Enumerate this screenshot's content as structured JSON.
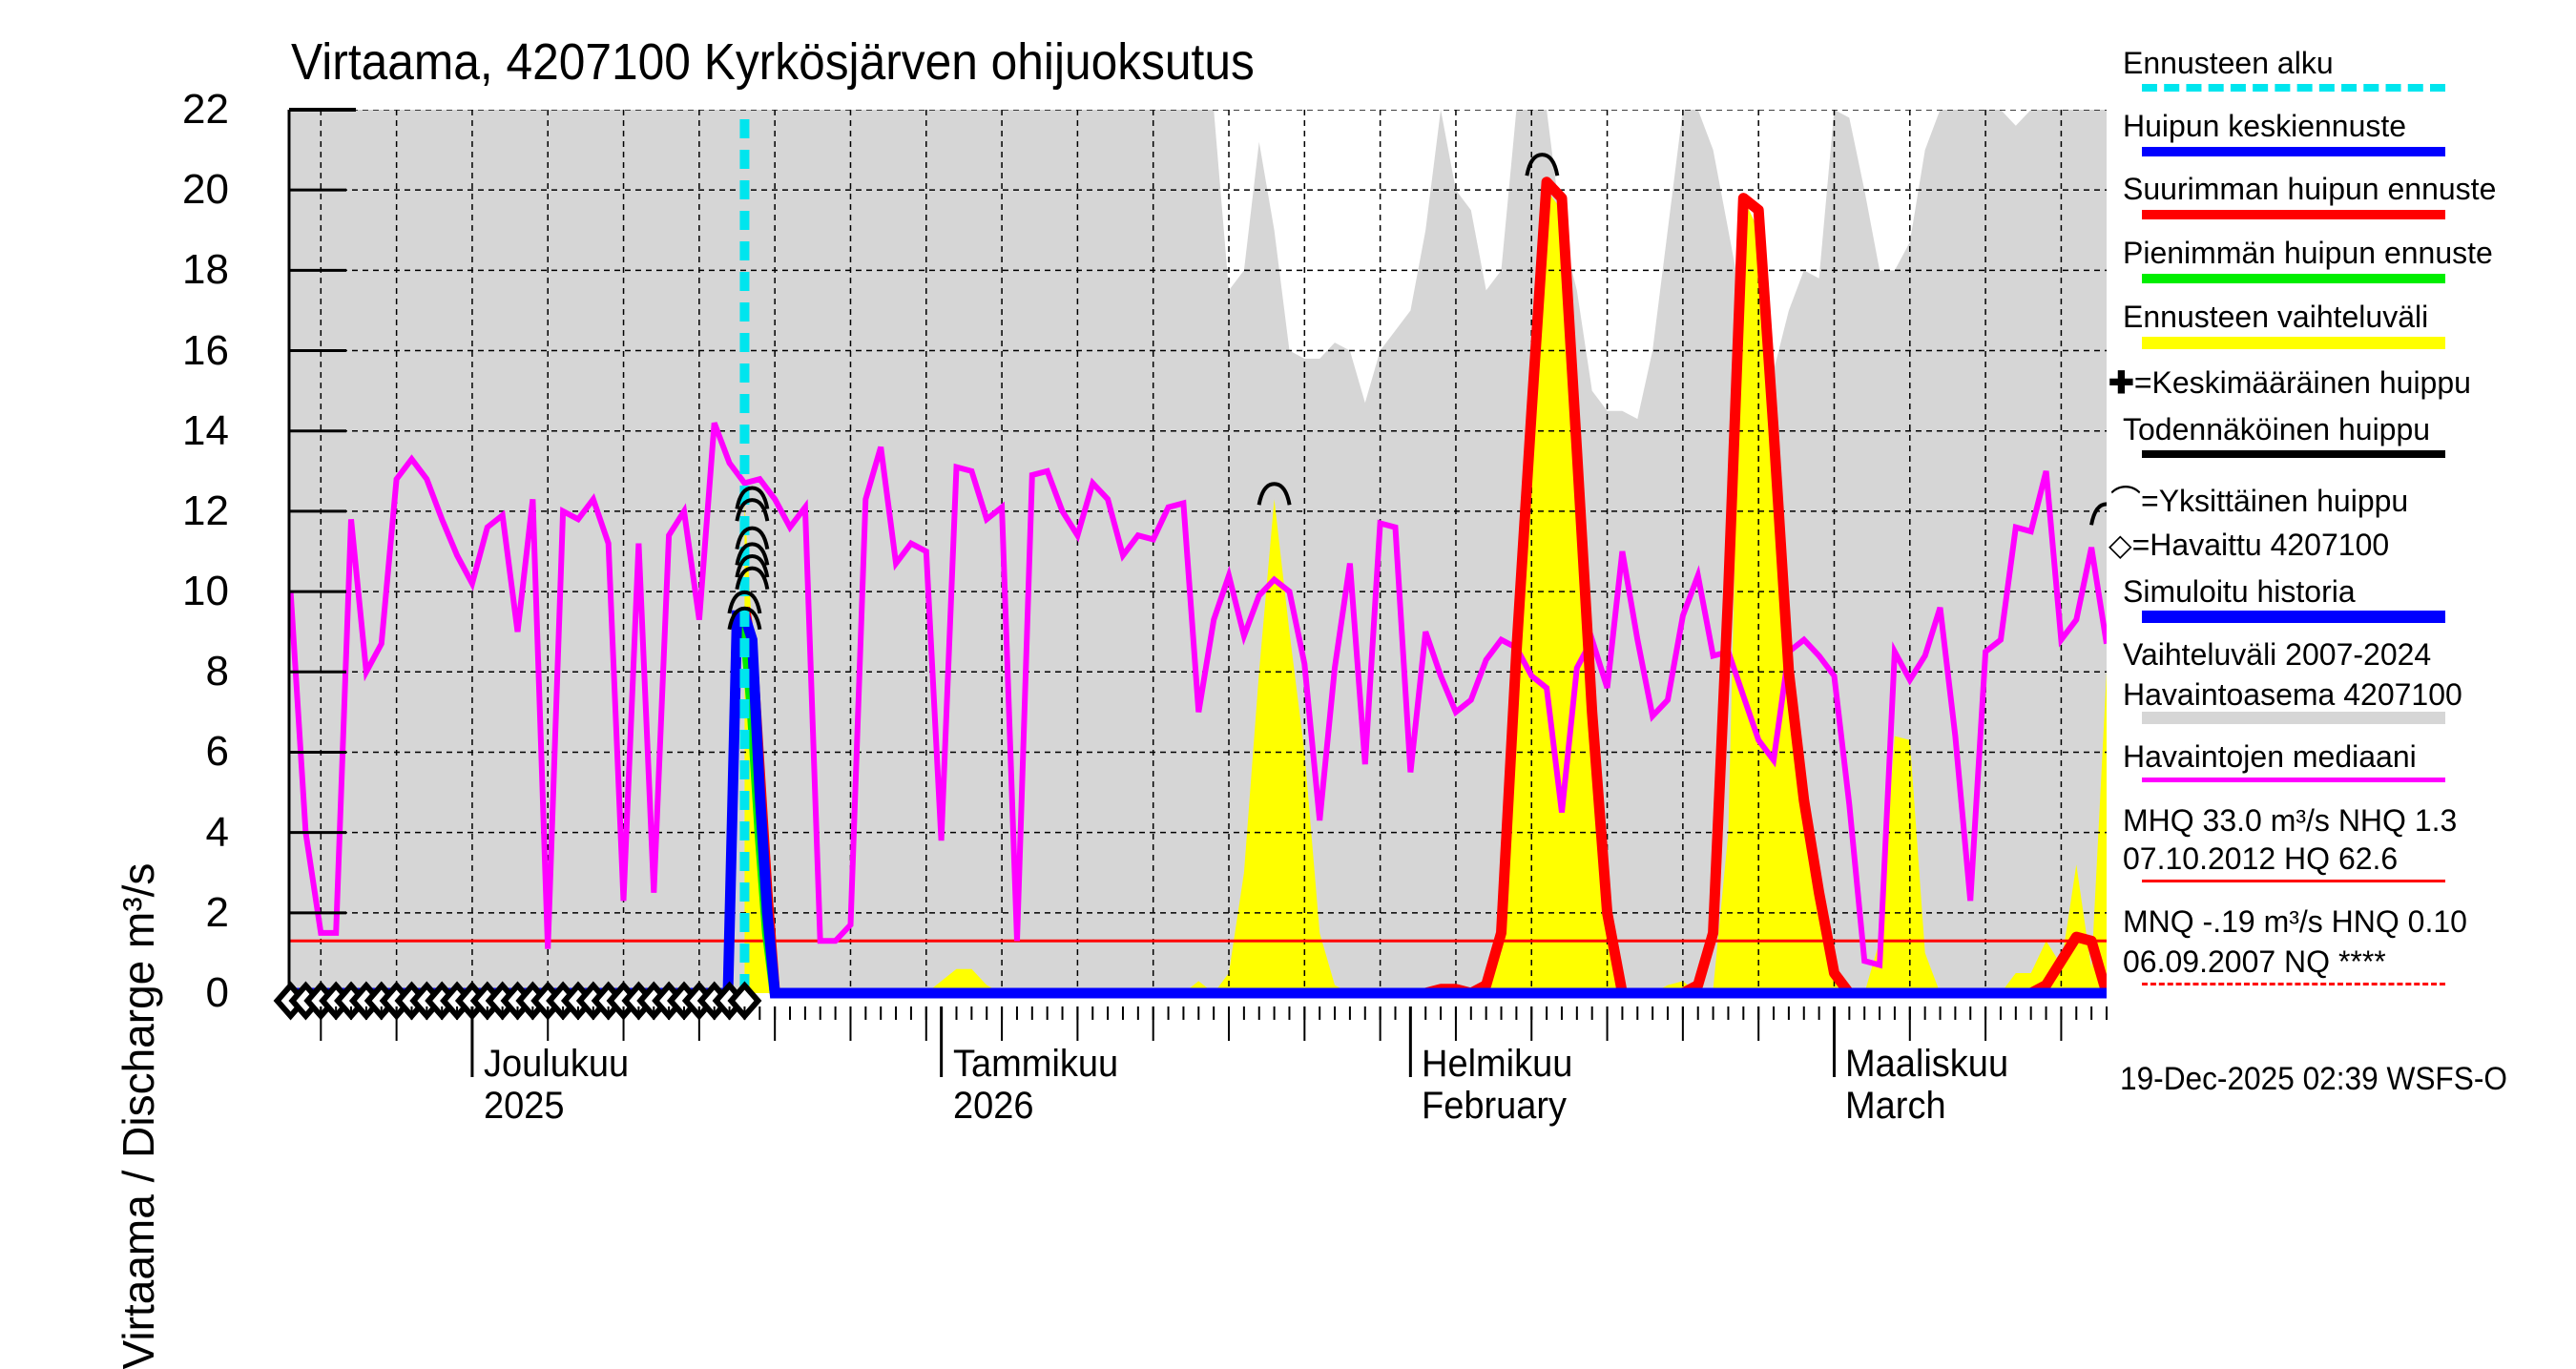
{
  "title": "Virtaama, 4207100 Kyrkösjärven ohijuoksutus",
  "y_axis_label": "Virtaama / Discharge    m³/s",
  "x_axis": {
    "months": [
      {
        "label1": "Joulukuu",
        "label2": "2025",
        "day": 0
      },
      {
        "label1": "Tammikuu",
        "label2": "2026",
        "day": 31
      },
      {
        "label1": "Helmikuu",
        "label2": "February",
        "day": 62
      },
      {
        "label1": "Maaliskuu",
        "label2": "March",
        "day": 90
      }
    ]
  },
  "legend": {
    "forecast_start": "Ennusteen alku",
    "mean_peak_forecast": "Huipun keskiennuste",
    "max_peak_forecast": "Suurimman huipun ennuste",
    "min_peak_forecast": "Pienimmän huipun ennuste",
    "forecast_range": "Ennusteen vaihteluväli",
    "mean_peak": "=Keskimääräinen huippu",
    "probable_peak": "Todennäköinen huippu",
    "single_peak": "=Yksittäinen huippu",
    "observed": "=Havaittu 4207100",
    "simulated_history": "Simuloitu historia",
    "range_line1": "Vaihteluväli 2007-2024",
    "range_line2": "Havaintoasema 4207100",
    "median": "Havaintojen mediaani",
    "mhq_line1": "MHQ 33.0 m³/s NHQ  1.3",
    "mhq_line2": "07.10.2012 HQ 62.6",
    "mnq_line1": "MNQ -.19 m³/s HNQ 0.10",
    "mnq_line2": "06.09.2007 NQ ****"
  },
  "footer": "19-Dec-2025 02:39 WSFS-O",
  "colors": {
    "forecast_start": "#00e5ee",
    "mean_forecast": "#0000ff",
    "max_forecast": "#ff0000",
    "min_forecast": "#00ee00",
    "forecast_range": "#ffff00",
    "probable_peak": "#000000",
    "simulated": "#0000ff",
    "hist_range": "#d6d6d6",
    "median": "#ff00ff",
    "nhq": "#ff0000",
    "grid": "#000000"
  },
  "chart_data": {
    "type": "line",
    "title": "Virtaama, 4207100 Kyrkösjärven ohijuoksutus",
    "xlabel": "",
    "ylabel": "Virtaama / Discharge m³/s",
    "ylim": [
      0,
      22
    ],
    "yticks": [
      0,
      2,
      4,
      6,
      8,
      10,
      12,
      14,
      16,
      18,
      20,
      22
    ],
    "x_unit": "days since 2025-12-01",
    "xlim": [
      -12.1,
      108
    ],
    "forecast_start_day": 18,
    "nhq_level": 1.3,
    "grid": true,
    "series": [
      {
        "name": "Havaintojen mediaani",
        "days": [
          -12,
          -11,
          -10,
          -9,
          -8,
          -7,
          -6,
          -5,
          -4,
          -3,
          -2,
          -1,
          0,
          1,
          2,
          3,
          4,
          5,
          6,
          7,
          8,
          9,
          10,
          11,
          12,
          13,
          14,
          15,
          16,
          17,
          18,
          19,
          20,
          21,
          22,
          23,
          24,
          25,
          26,
          27,
          28,
          29,
          30,
          31,
          32,
          33,
          34,
          35,
          36,
          37,
          38,
          39,
          40,
          41,
          42,
          43,
          44,
          45,
          46,
          47,
          48,
          49,
          50,
          51,
          52,
          53,
          54,
          55,
          56,
          57,
          58,
          59,
          60,
          61,
          62,
          63,
          64,
          65,
          66,
          67,
          68,
          69,
          70,
          71,
          72,
          73,
          74,
          75,
          76,
          77,
          78,
          79,
          80,
          81,
          82,
          83,
          84,
          85,
          86,
          87,
          88,
          89,
          90,
          91,
          92,
          93,
          94,
          95,
          96,
          97,
          98,
          99,
          100,
          101,
          102,
          103,
          104,
          105,
          106,
          107,
          108
        ],
        "values": [
          10,
          4,
          1.5,
          1.5,
          11.8,
          8,
          8.7,
          12.8,
          13.3,
          12.8,
          11.8,
          10.9,
          10.2,
          11.6,
          11.9,
          9,
          12.3,
          1.1,
          12,
          11.8,
          12.3,
          11.2,
          2.3,
          11.2,
          2.5,
          11.4,
          12,
          9.3,
          14.2,
          13.2,
          12.7,
          12.8,
          12.3,
          11.6,
          12.1,
          1.3,
          1.3,
          1.7,
          12.3,
          13.6,
          10.7,
          11.2,
          11,
          3.8,
          13.1,
          13,
          11.8,
          12.1,
          1.3,
          12.9,
          13,
          12,
          11.4,
          12.7,
          12.3,
          10.9,
          11.4,
          11.3,
          12.1,
          12.2,
          7,
          9.3,
          10.4,
          8.9,
          9.9,
          10.3,
          10,
          8.2,
          4.3,
          8.1,
          10.7,
          5.7,
          11.7,
          11.6,
          5.5,
          9,
          7.9,
          7,
          7.3,
          8.3,
          8.8,
          8.6,
          7.9,
          7.6,
          4.5,
          8.1,
          8.8,
          7.6,
          11,
          8.8,
          6.9,
          7.3,
          9.4,
          10.4,
          8.4,
          8.5,
          7.4,
          6.3,
          5.8,
          8.5,
          8.8,
          8.4,
          7.9,
          4.7,
          0.8,
          0.7,
          8.5,
          7.8,
          8.4,
          9.6,
          6.4,
          2.3,
          8.5,
          8.8,
          11.6,
          11.5,
          13,
          8.8,
          9.3,
          11.1,
          8.7
        ]
      },
      {
        "name": "Huipun keskiennuste / Simuloitu historia",
        "days": [
          -12,
          16.9,
          17.5,
          18,
          18.5,
          19,
          19.5,
          20,
          108
        ],
        "values": [
          0,
          0,
          9.4,
          9.4,
          8.8,
          5,
          2,
          0,
          0
        ]
      },
      {
        "name": "Pienimmän huipun ennuste",
        "days": [
          18,
          18.5,
          19,
          19.5,
          20
        ],
        "values": [
          9.2,
          7,
          4,
          1.5,
          0
        ]
      },
      {
        "name": "Suurimman huipun ennuste",
        "days": [
          18,
          18.5,
          19,
          19.5,
          20,
          40,
          63,
          64,
          65,
          66,
          67,
          68,
          69,
          70,
          71,
          72,
          73,
          74,
          75,
          76,
          77,
          78,
          79,
          80,
          81,
          82,
          83,
          84,
          85,
          86,
          87,
          88,
          89,
          90,
          91,
          100,
          103,
          104,
          105,
          106,
          107,
          108
        ],
        "values": [
          9.6,
          8.5,
          5.5,
          2.5,
          0,
          0,
          0,
          0.1,
          0.1,
          0,
          0.2,
          1.5,
          8.5,
          14.5,
          20.2,
          19.8,
          13.5,
          7,
          2,
          0,
          0,
          0,
          0,
          0,
          0.2,
          1.5,
          10,
          19.8,
          19.5,
          14,
          8,
          4.8,
          2.5,
          0.5,
          0,
          0,
          0,
          0.2,
          0.8,
          1.4,
          1.3,
          0
        ]
      },
      {
        "name": "Ennusteen vaihteluväli (upper)",
        "days": [
          18,
          18.5,
          19,
          19.5,
          20,
          24,
          30,
          32,
          33,
          34,
          35,
          36,
          37,
          38,
          40,
          45,
          47,
          48,
          49,
          50,
          51,
          52,
          53,
          54,
          55,
          56,
          57,
          58,
          59,
          60,
          61,
          62,
          63,
          64,
          65,
          66,
          67,
          68,
          69,
          70,
          71,
          72,
          73,
          74,
          75,
          76,
          77,
          78,
          79,
          80,
          81,
          82,
          83,
          84,
          85,
          86,
          87,
          88,
          89,
          90,
          91,
          92,
          93,
          94,
          95,
          96,
          97,
          98,
          99,
          100,
          101,
          102,
          103,
          104,
          105,
          106,
          107,
          108
        ],
        "values": [
          12.2,
          9,
          6,
          3,
          0,
          0,
          0,
          0.6,
          0.6,
          0.2,
          0,
          0,
          0,
          0,
          0,
          0,
          0,
          0.3,
          0,
          0.5,
          3,
          8,
          12.3,
          9,
          6,
          1.5,
          0.2,
          0,
          0,
          0,
          0,
          0,
          0,
          0,
          0,
          0,
          0.3,
          1,
          8,
          14,
          20,
          19.5,
          14,
          6,
          1.5,
          0.2,
          0,
          0,
          0.2,
          0.3,
          0,
          0.1,
          4,
          19.8,
          19,
          14,
          7,
          4.8,
          3,
          0.8,
          0,
          0,
          1.3,
          6.4,
          6.3,
          1,
          0,
          0,
          0,
          0,
          0,
          0.5,
          0.5,
          1.3,
          0.7,
          3.2,
          0.6,
          8,
          11.7
        ]
      },
      {
        "name": "Vaihteluväli 2007-2024 (upper envelope)",
        "days": [
          -12,
          45,
          46,
          47,
          48,
          49,
          50,
          51,
          52,
          53,
          54,
          55,
          56,
          57,
          58,
          59,
          60,
          61,
          62,
          63,
          64,
          65,
          66,
          67,
          68,
          69,
          70,
          71,
          72,
          73,
          74,
          75,
          76,
          77,
          78,
          79,
          80,
          81,
          82,
          83,
          84,
          85,
          86,
          87,
          88,
          89,
          90,
          91,
          92,
          93,
          94,
          95,
          96,
          97,
          98,
          99,
          100,
          101,
          102,
          103,
          104,
          105,
          106,
          107,
          108
        ],
        "values": [
          22,
          22,
          22,
          22,
          22,
          22,
          17.5,
          18,
          21.2,
          19,
          16,
          15.8,
          15.8,
          16.2,
          16,
          14.7,
          16,
          16.5,
          17,
          19,
          22,
          20,
          19.5,
          17.5,
          18,
          22,
          22,
          22,
          19,
          17.5,
          15,
          14.5,
          14.5,
          14.3,
          16,
          19,
          22,
          22,
          21,
          19,
          17,
          16.5,
          15.5,
          17,
          18,
          17.8,
          22,
          21.8,
          20,
          18,
          18,
          18.7,
          21,
          22,
          22,
          22,
          22,
          22,
          21.6,
          22,
          22,
          22,
          22,
          22,
          22
        ]
      },
      {
        "name": "Havaittu 4207100",
        "days": [
          -12,
          -11,
          -10,
          -9,
          -8,
          -7,
          -6,
          -5,
          -4,
          -3,
          -2,
          -1,
          0,
          1,
          2,
          3,
          4,
          5,
          6,
          7,
          8,
          9,
          10,
          11,
          12,
          13,
          14,
          15,
          16,
          17,
          18
        ],
        "values": [
          0,
          0,
          0,
          0,
          0,
          0,
          0,
          0,
          0,
          0,
          0,
          0,
          0,
          0,
          0,
          0,
          0,
          0,
          0,
          0,
          0,
          0,
          0,
          0,
          0,
          0,
          0,
          0,
          0,
          0,
          0
        ]
      }
    ],
    "single_peaks": [
      {
        "day": 18.5,
        "value": 12.2
      },
      {
        "day": 18.5,
        "value": 11.9
      },
      {
        "day": 18.5,
        "value": 11.2
      },
      {
        "day": 18.5,
        "value": 10.8
      },
      {
        "day": 18.5,
        "value": 10.5
      },
      {
        "day": 18.5,
        "value": 10.2
      },
      {
        "day": 18,
        "value": 9.6
      },
      {
        "day": 18,
        "value": 9.2
      },
      {
        "day": 53,
        "value": 12.3
      },
      {
        "day": 70.7,
        "value": 20.5
      },
      {
        "day": 108,
        "value": 11.8
      }
    ]
  }
}
